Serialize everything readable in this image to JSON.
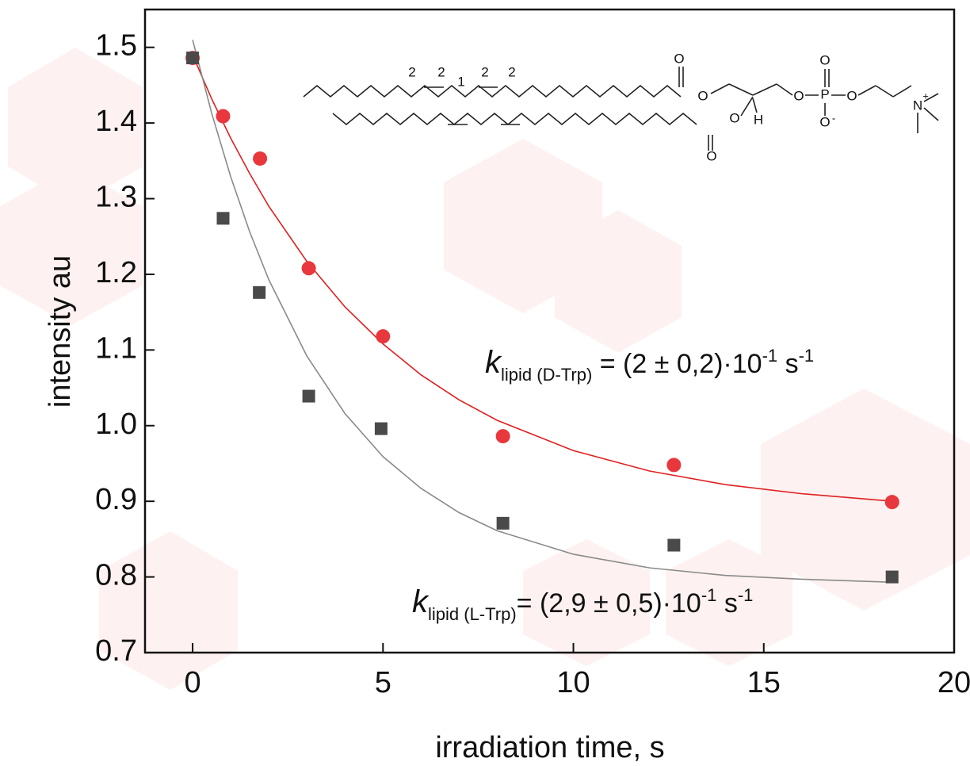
{
  "chart_data": {
    "type": "scatter",
    "x_label": "irradiation time, s",
    "y_label": "intensity au",
    "xlim": [
      -1.25,
      20
    ],
    "ylim": [
      0.7,
      1.55
    ],
    "xticks": [
      0,
      5,
      10,
      15,
      20
    ],
    "yticks": [
      0.7,
      0.8,
      0.9,
      {
        "value": 1,
        "label": "1.0"
      },
      1.1,
      1.2,
      1.3,
      1.4,
      1.5
    ],
    "series": [
      {
        "style": "circle",
        "color": "#e8383d",
        "x": [
          0,
          0.8,
          1.77,
          3.05,
          5.0,
          8.15,
          12.64,
          18.37
        ],
        "values": [
          1.486,
          1.409,
          1.353,
          1.208,
          1.118,
          0.986,
          0.948,
          0.899
        ]
      },
      {
        "style": "square",
        "color": "#4a4a4a",
        "x": [
          0,
          0.8,
          1.75,
          3.05,
          4.95,
          8.15,
          12.64,
          18.37
        ],
        "values": [
          1.486,
          1.274,
          1.176,
          1.039,
          0.996,
          0.871,
          0.842,
          0.8
        ]
      },
      {
        "style": "line",
        "color": "#e02020",
        "x": [
          0,
          0.5,
          1,
          1.5,
          2,
          3,
          4,
          5,
          6,
          7,
          8,
          10,
          12,
          14,
          16,
          18.4
        ],
        "values": [
          1.49,
          1.432,
          1.38,
          1.333,
          1.29,
          1.217,
          1.157,
          1.108,
          1.067,
          1.034,
          1.007,
          0.967,
          0.94,
          0.922,
          0.91,
          0.9
        ]
      },
      {
        "style": "line",
        "color": "#8a8a8a",
        "x": [
          0,
          0.5,
          1,
          1.5,
          2,
          3,
          4,
          5,
          6,
          7,
          8,
          10,
          12,
          14,
          16,
          18.4
        ],
        "values": [
          1.51,
          1.413,
          1.329,
          1.256,
          1.193,
          1.092,
          1.016,
          0.959,
          0.917,
          0.885,
          0.861,
          0.83,
          0.812,
          0.802,
          0.797,
          0.793
        ]
      }
    ],
    "annotations": [
      {
        "parts": [
          "k",
          "lipid (D-Trp)",
          " = (2 ± 0,2)·10",
          "-1",
          " s",
          "-1"
        ]
      },
      {
        "parts": [
          "k",
          "lipid (L-Trp)",
          "= (2,9 ± 0,5)·10",
          "-1",
          " s",
          "-1"
        ]
      }
    ],
    "structure_labels": [
      "2",
      "2",
      "1",
      "2",
      "2",
      "O",
      "O",
      "O",
      "O",
      "H",
      "O",
      "P",
      "O",
      "O",
      "O",
      "N",
      "+",
      "-"
    ]
  }
}
